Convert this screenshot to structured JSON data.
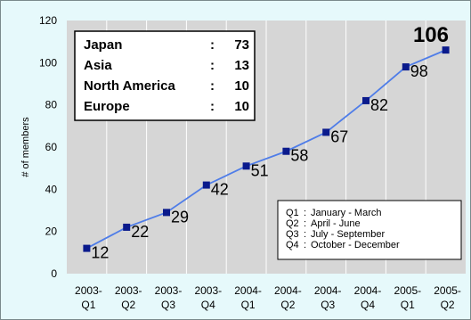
{
  "chart_data": {
    "type": "line",
    "categories": [
      [
        "2003-",
        "Q1"
      ],
      [
        "2003-",
        "Q2"
      ],
      [
        "2003-",
        "Q3"
      ],
      [
        "2003-",
        "Q4"
      ],
      [
        "2004-",
        "Q1"
      ],
      [
        "2004-",
        "Q2"
      ],
      [
        "2004-",
        "Q3"
      ],
      [
        "2004-",
        "Q4"
      ],
      [
        "2005-",
        "Q1"
      ],
      [
        "2005-",
        "Q2"
      ]
    ],
    "values": [
      12,
      22,
      29,
      42,
      51,
      58,
      67,
      82,
      98,
      106
    ],
    "data_labels": [
      "12",
      "22",
      "29",
      "42",
      "51",
      "58",
      "67",
      "82",
      "98",
      "106"
    ],
    "ylabel": "# of members",
    "ylim": [
      0,
      120
    ],
    "yticks": [
      0,
      20,
      40,
      60,
      80,
      100,
      120
    ],
    "grid": "vertical",
    "line_color": "#4f7de8",
    "marker_color": "#0a1a8c",
    "plot_background": "#d6d6d6",
    "regions": [
      {
        "name": "Japan",
        "sep": ":",
        "value": "73"
      },
      {
        "name": "Asia",
        "sep": ":",
        "value": "13"
      },
      {
        "name": "North America",
        "sep": ":",
        "value": "10"
      },
      {
        "name": "Europe",
        "sep": ":",
        "value": "10"
      }
    ],
    "quarter_legend": [
      {
        "q": "Q1",
        "sep": ":",
        "text": "January - March"
      },
      {
        "q": "Q2",
        "sep": ":",
        "text": "April - June"
      },
      {
        "q": "Q3",
        "sep": ":",
        "text": "July - September"
      },
      {
        "q": "Q4",
        "sep": ":",
        "text": "October - December"
      }
    ]
  }
}
